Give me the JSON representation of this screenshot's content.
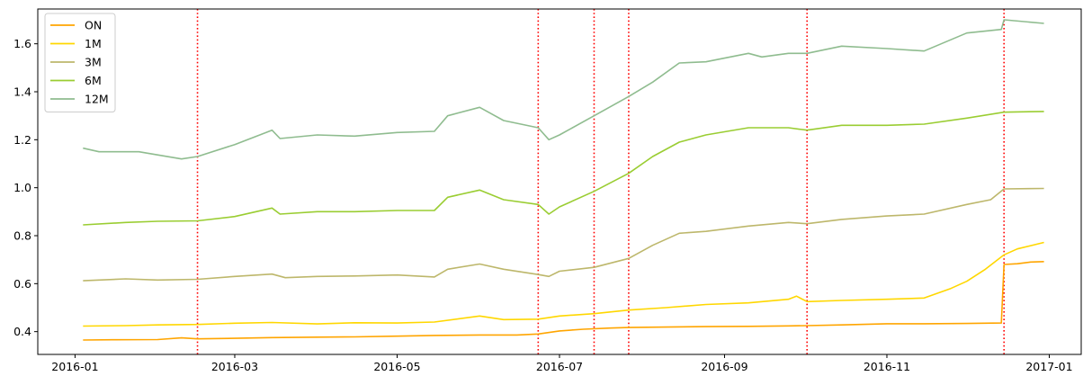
{
  "chart_data": {
    "type": "line",
    "title": "",
    "xlabel": "",
    "ylabel": "",
    "grid": false,
    "legend_position": "top-left",
    "x_ticks": [
      "2016-01",
      "2016-03",
      "2016-05",
      "2016-07",
      "2016-09",
      "2016-11",
      "2017-01"
    ],
    "y_ticks": [
      "0.4",
      "0.6",
      "0.8",
      "1.0",
      "1.2",
      "1.4",
      "1.6"
    ],
    "xlim": [
      "2015-12-18",
      "2017-01-13"
    ],
    "ylim": [
      0.305,
      1.745
    ],
    "vlines": {
      "color": "#ff0000",
      "style": "dotted",
      "dates": [
        "2016-02-16",
        "2016-06-23",
        "2016-07-14",
        "2016-07-27",
        "2016-10-02",
        "2016-12-15"
      ]
    },
    "series": [
      {
        "name": "ON",
        "color": "#ffa500",
        "points": [
          [
            "2016-01-04",
            0.365
          ],
          [
            "2016-01-15",
            0.366
          ],
          [
            "2016-02-01",
            0.367
          ],
          [
            "2016-02-10",
            0.374
          ],
          [
            "2016-02-16",
            0.37
          ],
          [
            "2016-03-01",
            0.372
          ],
          [
            "2016-03-15",
            0.375
          ],
          [
            "2016-04-01",
            0.377
          ],
          [
            "2016-04-15",
            0.378
          ],
          [
            "2016-05-01",
            0.381
          ],
          [
            "2016-05-15",
            0.384
          ],
          [
            "2016-06-01",
            0.386
          ],
          [
            "2016-06-15",
            0.386
          ],
          [
            "2016-06-23",
            0.39
          ],
          [
            "2016-07-01",
            0.403
          ],
          [
            "2016-07-10",
            0.41
          ],
          [
            "2016-07-20",
            0.415
          ],
          [
            "2016-07-27",
            0.417
          ],
          [
            "2016-08-10",
            0.419
          ],
          [
            "2016-08-25",
            0.421
          ],
          [
            "2016-09-10",
            0.422
          ],
          [
            "2016-09-25",
            0.424
          ],
          [
            "2016-10-02",
            0.425
          ],
          [
            "2016-10-15",
            0.428
          ],
          [
            "2016-11-01",
            0.433
          ],
          [
            "2016-11-15",
            0.433
          ],
          [
            "2016-12-01",
            0.434
          ],
          [
            "2016-12-14",
            0.436
          ],
          [
            "2016-12-15",
            0.68
          ],
          [
            "2016-12-20",
            0.683
          ],
          [
            "2016-12-25",
            0.69
          ],
          [
            "2016-12-30",
            0.692
          ]
        ]
      },
      {
        "name": "1M",
        "color": "#ffd700",
        "points": [
          [
            "2016-01-04",
            0.423
          ],
          [
            "2016-01-20",
            0.425
          ],
          [
            "2016-02-01",
            0.428
          ],
          [
            "2016-02-16",
            0.43
          ],
          [
            "2016-03-01",
            0.435
          ],
          [
            "2016-03-15",
            0.438
          ],
          [
            "2016-04-01",
            0.432
          ],
          [
            "2016-04-15",
            0.437
          ],
          [
            "2016-05-01",
            0.436
          ],
          [
            "2016-05-15",
            0.44
          ],
          [
            "2016-06-01",
            0.465
          ],
          [
            "2016-06-10",
            0.45
          ],
          [
            "2016-06-23",
            0.452
          ],
          [
            "2016-07-01",
            0.465
          ],
          [
            "2016-07-14",
            0.475
          ],
          [
            "2016-07-27",
            0.49
          ],
          [
            "2016-08-10",
            0.5
          ],
          [
            "2016-08-25",
            0.513
          ],
          [
            "2016-09-10",
            0.52
          ],
          [
            "2016-09-25",
            0.535
          ],
          [
            "2016-09-28",
            0.548
          ],
          [
            "2016-10-02",
            0.525
          ],
          [
            "2016-10-15",
            0.53
          ],
          [
            "2016-11-01",
            0.535
          ],
          [
            "2016-11-15",
            0.54
          ],
          [
            "2016-11-25",
            0.58
          ],
          [
            "2016-12-01",
            0.61
          ],
          [
            "2016-12-08",
            0.66
          ],
          [
            "2016-12-15",
            0.72
          ],
          [
            "2016-12-20",
            0.745
          ],
          [
            "2016-12-30",
            0.772
          ]
        ]
      },
      {
        "name": "3M",
        "color": "#bdb76b",
        "points": [
          [
            "2016-01-04",
            0.612
          ],
          [
            "2016-01-20",
            0.62
          ],
          [
            "2016-02-01",
            0.615
          ],
          [
            "2016-02-16",
            0.618
          ],
          [
            "2016-03-01",
            0.63
          ],
          [
            "2016-03-15",
            0.64
          ],
          [
            "2016-03-20",
            0.625
          ],
          [
            "2016-04-01",
            0.63
          ],
          [
            "2016-04-15",
            0.632
          ],
          [
            "2016-05-01",
            0.636
          ],
          [
            "2016-05-15",
            0.628
          ],
          [
            "2016-05-20",
            0.66
          ],
          [
            "2016-06-01",
            0.682
          ],
          [
            "2016-06-10",
            0.66
          ],
          [
            "2016-06-23",
            0.638
          ],
          [
            "2016-06-27",
            0.63
          ],
          [
            "2016-07-01",
            0.652
          ],
          [
            "2016-07-14",
            0.668
          ],
          [
            "2016-07-27",
            0.705
          ],
          [
            "2016-08-05",
            0.76
          ],
          [
            "2016-08-15",
            0.81
          ],
          [
            "2016-08-25",
            0.818
          ],
          [
            "2016-09-10",
            0.84
          ],
          [
            "2016-09-25",
            0.855
          ],
          [
            "2016-10-02",
            0.85
          ],
          [
            "2016-10-15",
            0.868
          ],
          [
            "2016-11-01",
            0.882
          ],
          [
            "2016-11-15",
            0.89
          ],
          [
            "2016-12-01",
            0.93
          ],
          [
            "2016-12-10",
            0.95
          ],
          [
            "2016-12-15",
            0.995
          ],
          [
            "2016-12-30",
            0.997
          ]
        ]
      },
      {
        "name": "6M",
        "color": "#9acd32",
        "points": [
          [
            "2016-01-04",
            0.845
          ],
          [
            "2016-01-20",
            0.855
          ],
          [
            "2016-02-01",
            0.86
          ],
          [
            "2016-02-16",
            0.862
          ],
          [
            "2016-03-01",
            0.88
          ],
          [
            "2016-03-15",
            0.915
          ],
          [
            "2016-03-18",
            0.89
          ],
          [
            "2016-04-01",
            0.9
          ],
          [
            "2016-04-15",
            0.9
          ],
          [
            "2016-05-01",
            0.905
          ],
          [
            "2016-05-15",
            0.905
          ],
          [
            "2016-05-20",
            0.96
          ],
          [
            "2016-06-01",
            0.99
          ],
          [
            "2016-06-10",
            0.95
          ],
          [
            "2016-06-23",
            0.93
          ],
          [
            "2016-06-27",
            0.89
          ],
          [
            "2016-07-01",
            0.92
          ],
          [
            "2016-07-14",
            0.985
          ],
          [
            "2016-07-27",
            1.06
          ],
          [
            "2016-08-05",
            1.13
          ],
          [
            "2016-08-15",
            1.19
          ],
          [
            "2016-08-25",
            1.22
          ],
          [
            "2016-09-10",
            1.25
          ],
          [
            "2016-09-25",
            1.25
          ],
          [
            "2016-10-02",
            1.24
          ],
          [
            "2016-10-15",
            1.26
          ],
          [
            "2016-11-01",
            1.26
          ],
          [
            "2016-11-15",
            1.265
          ],
          [
            "2016-12-01",
            1.29
          ],
          [
            "2016-12-15",
            1.315
          ],
          [
            "2016-12-30",
            1.318
          ]
        ]
      },
      {
        "name": "12M",
        "color": "#8fbc8f",
        "points": [
          [
            "2016-01-04",
            1.165
          ],
          [
            "2016-01-10",
            1.15
          ],
          [
            "2016-01-25",
            1.15
          ],
          [
            "2016-02-10",
            1.12
          ],
          [
            "2016-02-16",
            1.13
          ],
          [
            "2016-03-01",
            1.18
          ],
          [
            "2016-03-15",
            1.24
          ],
          [
            "2016-03-18",
            1.205
          ],
          [
            "2016-04-01",
            1.22
          ],
          [
            "2016-04-15",
            1.215
          ],
          [
            "2016-05-01",
            1.23
          ],
          [
            "2016-05-15",
            1.235
          ],
          [
            "2016-05-20",
            1.3
          ],
          [
            "2016-06-01",
            1.335
          ],
          [
            "2016-06-10",
            1.28
          ],
          [
            "2016-06-23",
            1.25
          ],
          [
            "2016-06-27",
            1.2
          ],
          [
            "2016-07-01",
            1.22
          ],
          [
            "2016-07-14",
            1.3
          ],
          [
            "2016-07-27",
            1.38
          ],
          [
            "2016-08-05",
            1.44
          ],
          [
            "2016-08-15",
            1.52
          ],
          [
            "2016-08-25",
            1.525
          ],
          [
            "2016-09-10",
            1.56
          ],
          [
            "2016-09-15",
            1.545
          ],
          [
            "2016-09-25",
            1.56
          ],
          [
            "2016-10-02",
            1.56
          ],
          [
            "2016-10-15",
            1.59
          ],
          [
            "2016-11-01",
            1.58
          ],
          [
            "2016-11-15",
            1.57
          ],
          [
            "2016-12-01",
            1.645
          ],
          [
            "2016-12-14",
            1.66
          ],
          [
            "2016-12-15",
            1.7
          ],
          [
            "2016-12-30",
            1.685
          ]
        ]
      }
    ]
  }
}
